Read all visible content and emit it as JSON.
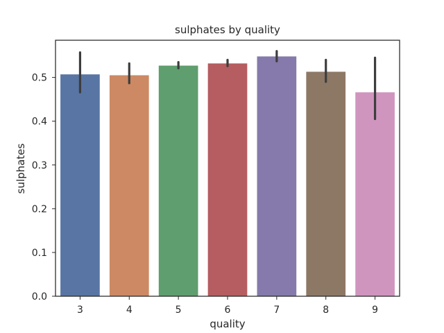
{
  "chart_data": {
    "type": "bar",
    "title": "sulphates by quality",
    "xlabel": "quality",
    "ylabel": "sulphates",
    "categories": [
      "3",
      "4",
      "5",
      "6",
      "7",
      "8",
      "9"
    ],
    "values": [
      0.507,
      0.505,
      0.527,
      0.532,
      0.548,
      0.513,
      0.466
    ],
    "error_low": [
      0.466,
      0.487,
      0.521,
      0.526,
      0.537,
      0.49,
      0.405
    ],
    "error_high": [
      0.557,
      0.532,
      0.535,
      0.54,
      0.56,
      0.54,
      0.545
    ],
    "ylim": [
      0,
      0.585
    ],
    "yticks": [
      0.0,
      0.1,
      0.2,
      0.3,
      0.4,
      0.5
    ],
    "ytick_labels": [
      "0.0",
      "0.1",
      "0.2",
      "0.3",
      "0.4",
      "0.5"
    ],
    "colors": [
      "#5875a4",
      "#cc8963",
      "#5f9e6e",
      "#b55d60",
      "#857aab",
      "#8d7866",
      "#d095bf"
    ],
    "error_color": "#3d3d3d",
    "grid": false,
    "legend": "none"
  }
}
